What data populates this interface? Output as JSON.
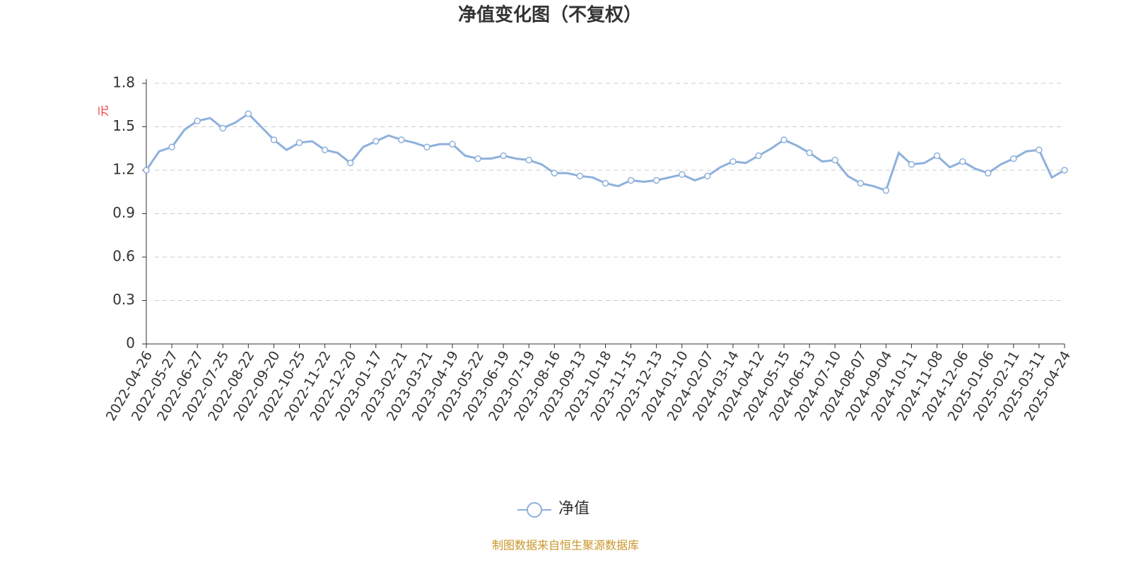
{
  "chart_data": {
    "type": "line",
    "title": "净值变化图（不复权）",
    "y_label": "元",
    "categories": [
      "2022-04-26",
      null,
      "2022-05-27",
      null,
      "2022-06-27",
      null,
      "2022-07-25",
      null,
      "2022-08-22",
      null,
      "2022-09-20",
      null,
      "2022-10-25",
      null,
      "2022-11-22",
      null,
      "2022-12-20",
      null,
      "2023-01-17",
      null,
      "2023-02-21",
      null,
      "2023-03-21",
      null,
      "2023-04-19",
      null,
      "2023-05-22",
      null,
      "2023-06-19",
      null,
      "2023-07-19",
      null,
      "2023-08-16",
      null,
      "2023-09-13",
      null,
      "2023-10-18",
      null,
      "2023-11-15",
      null,
      "2023-12-13",
      null,
      "2024-01-10",
      null,
      "2024-02-07",
      null,
      "2024-03-14",
      null,
      "2024-04-12",
      null,
      "2024-05-15",
      null,
      "2024-06-13",
      null,
      "2024-07-10",
      null,
      "2024-08-07",
      null,
      "2024-09-04",
      null,
      "2024-10-11",
      null,
      "2024-11-08",
      null,
      "2024-12-06",
      null,
      "2025-01-06",
      null,
      "2025-02-11",
      null,
      "2025-03-11",
      null,
      "2025-04-24"
    ],
    "series": [
      {
        "name": "净值",
        "color": "#8eb0dc",
        "values": [
          1.2,
          1.33,
          1.36,
          1.48,
          1.54,
          1.56,
          1.49,
          1.53,
          1.59,
          1.5,
          1.41,
          1.34,
          1.39,
          1.4,
          1.34,
          1.32,
          1.25,
          1.36,
          1.4,
          1.44,
          1.41,
          1.39,
          1.36,
          1.38,
          1.38,
          1.3,
          1.28,
          1.28,
          1.3,
          1.28,
          1.27,
          1.24,
          1.18,
          1.18,
          1.16,
          1.15,
          1.11,
          1.09,
          1.13,
          1.12,
          1.13,
          1.15,
          1.17,
          1.13,
          1.16,
          1.22,
          1.26,
          1.25,
          1.3,
          1.35,
          1.41,
          1.37,
          1.32,
          1.26,
          1.27,
          1.16,
          1.11,
          1.09,
          1.06,
          1.32,
          1.24,
          1.25,
          1.3,
          1.22,
          1.26,
          1.21,
          1.18,
          1.24,
          1.28,
          1.33,
          1.34,
          1.15,
          1.2
        ]
      }
    ],
    "ylim": [
      0,
      1.8
    ],
    "yticks": [
      0,
      0.3,
      0.6,
      0.9,
      1.2,
      1.5,
      1.8
    ],
    "grid": true,
    "source": "制图数据来自恒生聚源数据库"
  }
}
